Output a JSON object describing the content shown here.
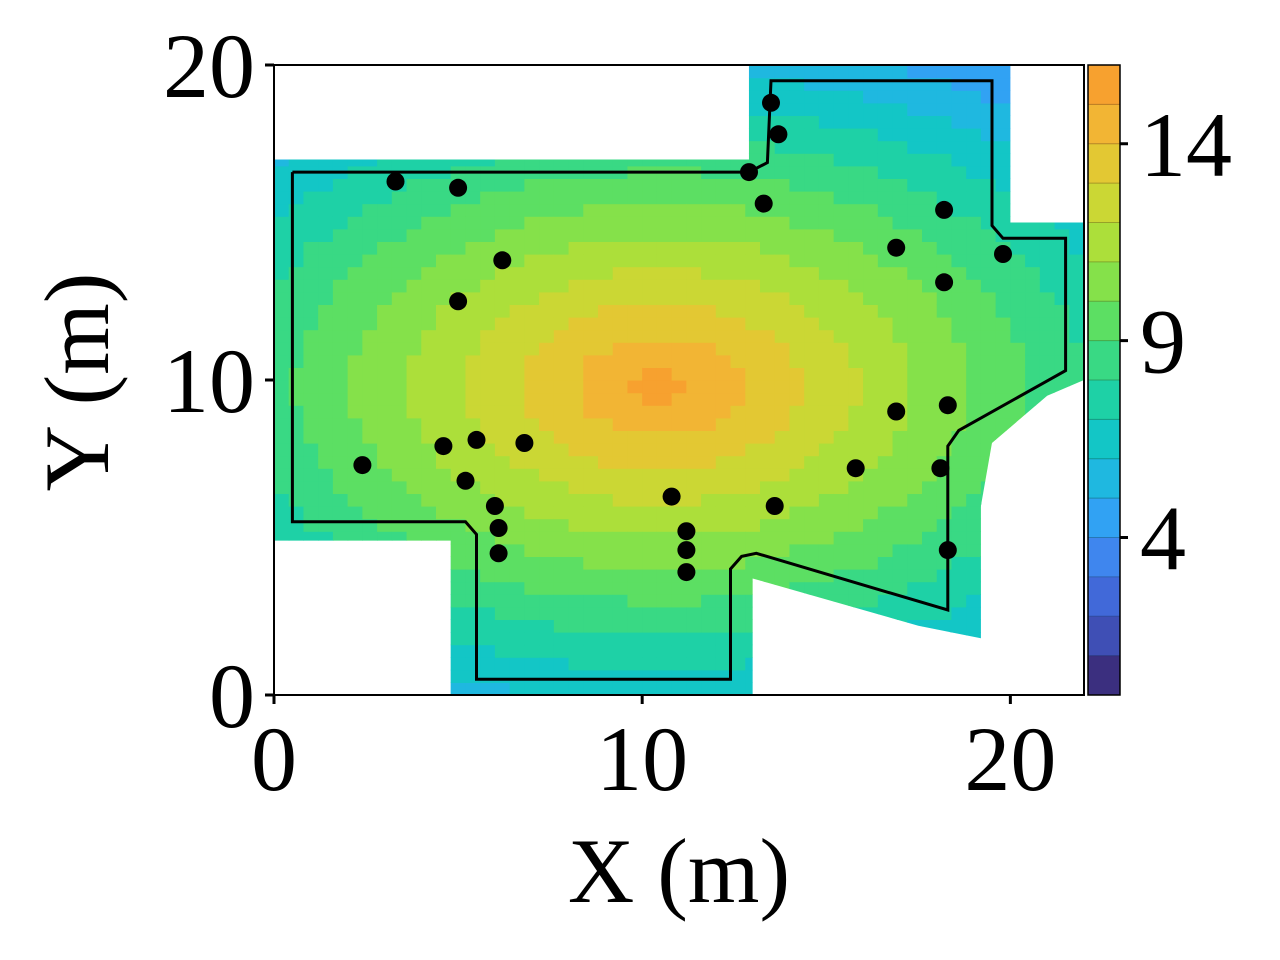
{
  "chart_data": {
    "type": "heatmap",
    "title": "",
    "xlabel": "X (m)",
    "ylabel": "Y (m)",
    "xlim": [
      0,
      22
    ],
    "ylim": [
      0,
      20
    ],
    "x_ticks": [
      0,
      10,
      20
    ],
    "x_tick_labels": [
      "0",
      "10",
      "20"
    ],
    "y_ticks": [
      0,
      10,
      20
    ],
    "y_tick_labels": [
      "0",
      "10",
      "20"
    ],
    "colorbar": {
      "min": 0,
      "max": 16,
      "levels": 16,
      "ticks": [
        4,
        9,
        14
      ],
      "tick_labels": [
        "4",
        "9",
        "14"
      ],
      "colormap": [
        "#3b2f7f",
        "#3f4fb5",
        "#4169d9",
        "#3f86ee",
        "#31a2f3",
        "#1fb8e0",
        "#13c6c6",
        "#1ed1a6",
        "#39d984",
        "#5cdf63",
        "#85e14a",
        "#acdf3a",
        "#cbd734",
        "#e3c833",
        "#f2b534",
        "#f7a12f"
      ]
    },
    "field": {
      "peak": [
        10.5,
        9.8
      ],
      "peak_value": 15.5,
      "coverage_polygon": [
        [
          0,
          17
        ],
        [
          12.9,
          17
        ],
        [
          12.9,
          20
        ],
        [
          20,
          20
        ],
        [
          20,
          15
        ],
        [
          22,
          15
        ],
        [
          22,
          10
        ],
        [
          21,
          9.5
        ],
        [
          19.5,
          8
        ],
        [
          19.2,
          6
        ],
        [
          19.2,
          1.8
        ],
        [
          17.5,
          2.2
        ],
        [
          13,
          3.7
        ],
        [
          13,
          0
        ],
        [
          4.8,
          0
        ],
        [
          4.8,
          4.9
        ],
        [
          0,
          4.9
        ]
      ]
    },
    "floor_outline": [
      [
        0.5,
        16.6
      ],
      [
        12.9,
        16.6
      ],
      [
        13.4,
        16.9
      ],
      [
        13.5,
        19.5
      ],
      [
        19.5,
        19.5
      ],
      [
        19.5,
        14.9
      ],
      [
        19.8,
        14.5
      ],
      [
        21.5,
        14.5
      ],
      [
        21.5,
        10.3
      ],
      [
        18.6,
        8.4
      ],
      [
        18.3,
        7.9
      ],
      [
        18.3,
        2.7
      ],
      [
        13.1,
        4.5
      ],
      [
        12.7,
        4.4
      ],
      [
        12.4,
        4.0
      ],
      [
        12.4,
        0.5
      ],
      [
        5.5,
        0.5
      ],
      [
        5.5,
        5.1
      ],
      [
        5.2,
        5.5
      ],
      [
        0.5,
        5.5
      ],
      [
        0.5,
        16.6
      ]
    ],
    "points": [
      {
        "x": 3.3,
        "y": 16.3
      },
      {
        "x": 5.0,
        "y": 16.1
      },
      {
        "x": 6.2,
        "y": 13.8
      },
      {
        "x": 5.0,
        "y": 12.5
      },
      {
        "x": 12.9,
        "y": 16.6
      },
      {
        "x": 13.5,
        "y": 18.8
      },
      {
        "x": 13.7,
        "y": 17.8
      },
      {
        "x": 13.3,
        "y": 15.6
      },
      {
        "x": 16.9,
        "y": 14.2
      },
      {
        "x": 18.2,
        "y": 15.4
      },
      {
        "x": 19.8,
        "y": 14.0
      },
      {
        "x": 18.2,
        "y": 13.1
      },
      {
        "x": 16.9,
        "y": 9.0
      },
      {
        "x": 18.3,
        "y": 9.2
      },
      {
        "x": 2.4,
        "y": 7.3
      },
      {
        "x": 4.6,
        "y": 7.9
      },
      {
        "x": 5.5,
        "y": 8.1
      },
      {
        "x": 6.8,
        "y": 8.0
      },
      {
        "x": 5.2,
        "y": 6.8
      },
      {
        "x": 6.0,
        "y": 6.0
      },
      {
        "x": 6.1,
        "y": 5.3
      },
      {
        "x": 6.1,
        "y": 4.5
      },
      {
        "x": 10.8,
        "y": 6.3
      },
      {
        "x": 11.2,
        "y": 5.2
      },
      {
        "x": 11.2,
        "y": 4.6
      },
      {
        "x": 11.2,
        "y": 3.9
      },
      {
        "x": 13.6,
        "y": 6.0
      },
      {
        "x": 15.8,
        "y": 7.2
      },
      {
        "x": 18.1,
        "y": 7.2
      },
      {
        "x": 18.3,
        "y": 4.6
      }
    ]
  }
}
